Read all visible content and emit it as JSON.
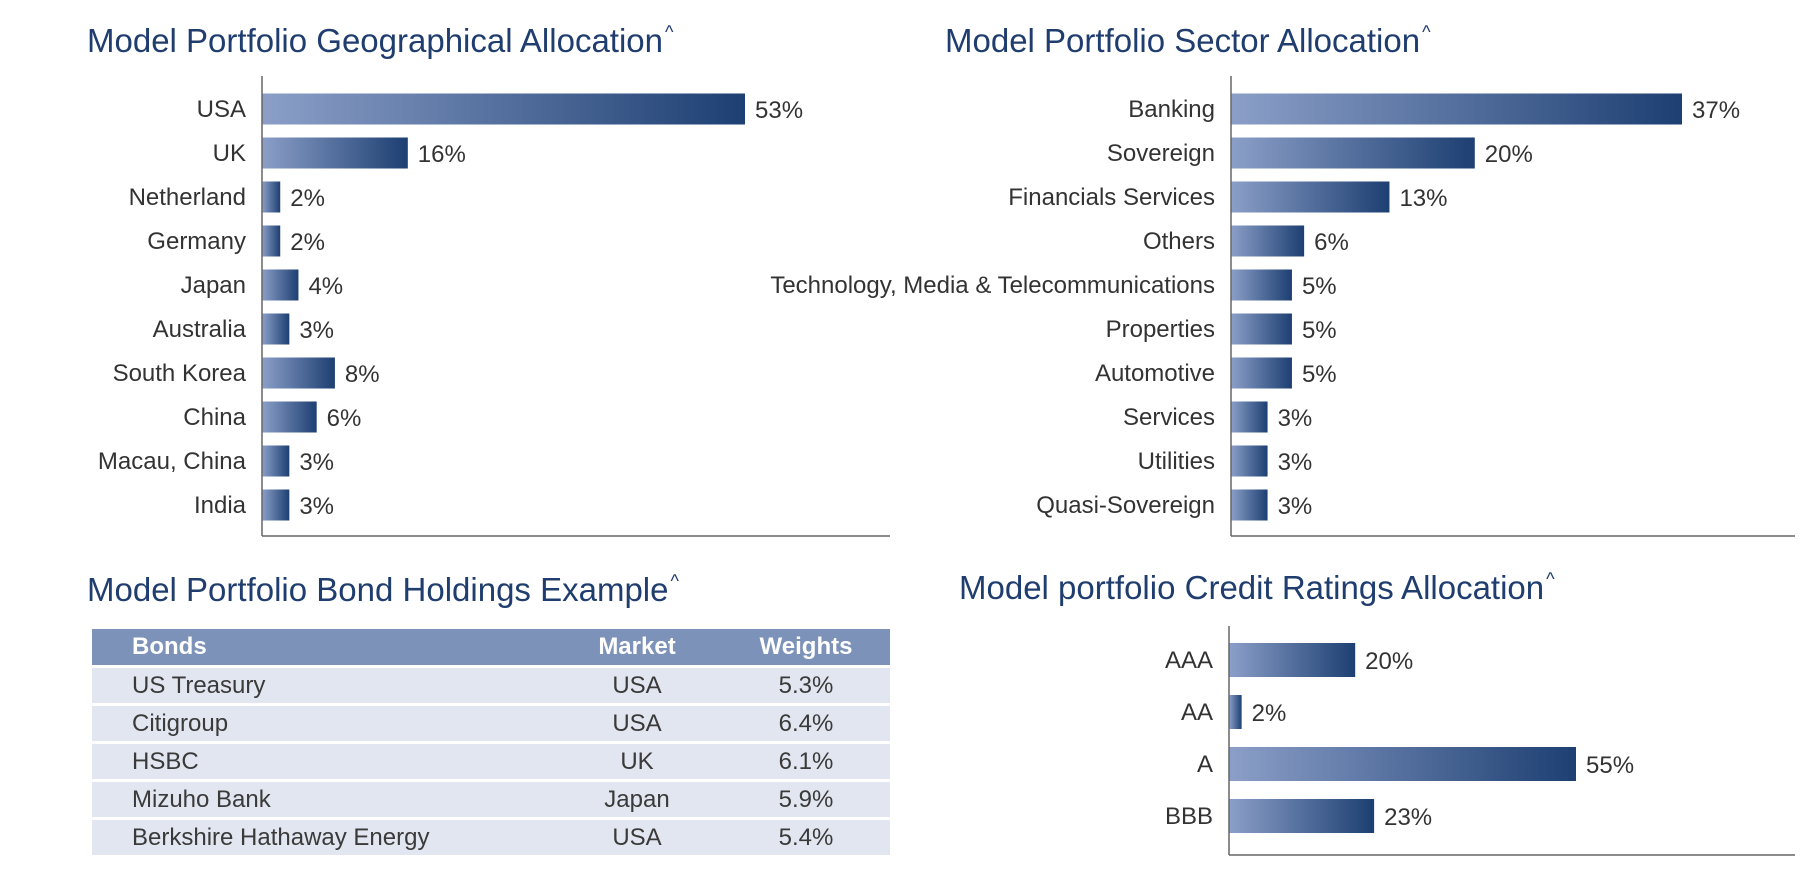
{
  "geo": {
    "title": "Model Portfolio Geographical Allocation",
    "title_mark": "^"
  },
  "sector": {
    "title": "Model Portfolio Sector Allocation",
    "title_mark": "^"
  },
  "bonds": {
    "title": "Model Portfolio Bond Holdings Example",
    "title_mark": "^",
    "headers": [
      "Bonds",
      "Market",
      "Weights"
    ],
    "rows": [
      [
        "US Treasury",
        "USA",
        "5.3%"
      ],
      [
        "Citigroup",
        "USA",
        "6.4%"
      ],
      [
        "HSBC",
        "UK",
        "6.1%"
      ],
      [
        "Mizuho Bank",
        "Japan",
        "5.9%"
      ],
      [
        "Berkshire Hathaway Energy",
        "USA",
        "5.4%"
      ]
    ]
  },
  "credit": {
    "title": "Model portfolio Credit Ratings Allocation",
    "title_mark": "^"
  },
  "colors": {
    "bar_start": "#8b9fc8",
    "bar_end": "#1d3f72",
    "axis": "#666666",
    "title": "#1f3d6e",
    "table_header": "#7d92b8",
    "table_row": "#e2e6f0"
  },
  "chart_data": [
    {
      "id": "geo",
      "type": "bar",
      "orientation": "horizontal",
      "categories": [
        "USA",
        "UK",
        "Netherland",
        "Germany",
        "Japan",
        "Australia",
        "South Korea",
        "China",
        "Macau, China",
        "India"
      ],
      "values": [
        53,
        16,
        2,
        2,
        4,
        3,
        8,
        6,
        3,
        3
      ],
      "value_labels": [
        "53%",
        "16%",
        "2%",
        "2%",
        "4%",
        "3%",
        "8%",
        "6%",
        "3%",
        "3%"
      ],
      "xlim": [
        0,
        53
      ]
    },
    {
      "id": "sector",
      "type": "bar",
      "orientation": "horizontal",
      "categories": [
        "Banking",
        "Sovereign",
        "Financials Services",
        "Others",
        "Technology, Media & Telecommunications",
        "Properties",
        "Automotive",
        "Services",
        "Utilities",
        "Quasi-Sovereign"
      ],
      "values": [
        37,
        20,
        13,
        6,
        5,
        5,
        5,
        3,
        3,
        3
      ],
      "value_labels": [
        "37%",
        "20%",
        "13%",
        "6%",
        "5%",
        "5%",
        "5%",
        "3%",
        "3%",
        "3%"
      ],
      "xlim": [
        0,
        37
      ]
    },
    {
      "id": "credit",
      "type": "bar",
      "orientation": "horizontal",
      "categories": [
        "AAA",
        "AA",
        "A",
        "BBB"
      ],
      "values": [
        20,
        2,
        55,
        23
      ],
      "value_labels": [
        "20%",
        "2%",
        "55%",
        "23%"
      ],
      "xlim": [
        0,
        55
      ]
    }
  ]
}
